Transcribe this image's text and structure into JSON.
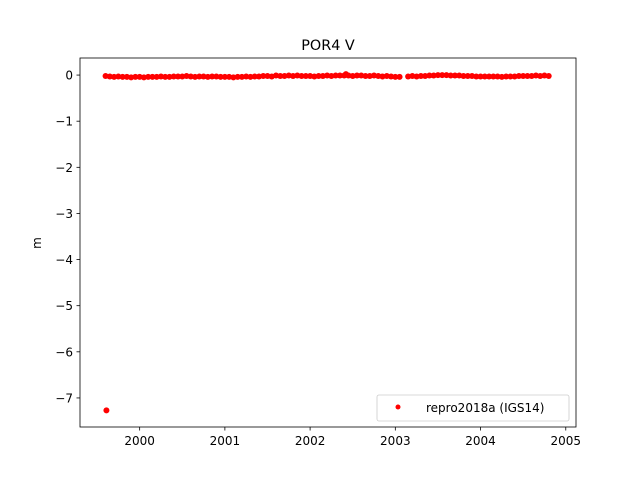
{
  "chart_data": {
    "type": "scatter",
    "title": "POR4 V",
    "xlabel": "",
    "ylabel": "m",
    "xlim": [
      1999.3,
      2005.12
    ],
    "ylim": [
      -7.63,
      0.37
    ],
    "xticks": [
      2000,
      2001,
      2002,
      2003,
      2004,
      2005
    ],
    "yticks": [
      0,
      -1,
      -2,
      -3,
      -4,
      -5,
      -6,
      -7
    ],
    "ytick_labels": [
      "0",
      "−1",
      "−2",
      "−3",
      "−4",
      "−5",
      "−6",
      "−7"
    ],
    "grid": false,
    "legend": "lower-right",
    "series": [
      {
        "name": "repro2018a (IGS14)",
        "color": "#ff0000",
        "marker": "dot",
        "x": [
          1999.6,
          1999.65,
          1999.7,
          1999.75,
          1999.8,
          1999.85,
          1999.9,
          1999.95,
          2000.0,
          2000.05,
          2000.1,
          2000.15,
          2000.2,
          2000.25,
          2000.3,
          2000.35,
          2000.4,
          2000.45,
          2000.5,
          2000.55,
          2000.6,
          2000.65,
          2000.7,
          2000.75,
          2000.8,
          2000.85,
          2000.9,
          2000.95,
          2001.0,
          2001.05,
          2001.1,
          2001.15,
          2001.2,
          2001.25,
          2001.3,
          2001.35,
          2001.4,
          2001.45,
          2001.5,
          2001.55,
          2001.6,
          2001.65,
          2001.7,
          2001.75,
          2001.8,
          2001.85,
          2001.9,
          2001.95,
          2002.0,
          2002.05,
          2002.1,
          2002.15,
          2002.2,
          2002.25,
          2002.3,
          2002.35,
          2002.4,
          2002.42,
          2002.45,
          2002.5,
          2002.55,
          2002.6,
          2002.65,
          2002.7,
          2002.75,
          2002.8,
          2002.85,
          2002.9,
          2002.95,
          2003.0,
          2003.05,
          2003.15,
          2003.2,
          2003.25,
          2003.3,
          2003.35,
          2003.4,
          2003.45,
          2003.5,
          2003.55,
          2003.6,
          2003.65,
          2003.7,
          2003.75,
          2003.8,
          2003.85,
          2003.9,
          2003.95,
          2004.0,
          2004.05,
          2004.1,
          2004.15,
          2004.2,
          2004.25,
          2004.3,
          2004.35,
          2004.4,
          2004.45,
          2004.5,
          2004.55,
          2004.6,
          2004.65,
          2004.7,
          2004.75,
          2004.8,
          1999.61
        ],
        "y": [
          -0.02,
          -0.03,
          -0.04,
          -0.03,
          -0.04,
          -0.04,
          -0.05,
          -0.04,
          -0.04,
          -0.05,
          -0.04,
          -0.04,
          -0.04,
          -0.03,
          -0.04,
          -0.04,
          -0.03,
          -0.03,
          -0.03,
          -0.02,
          -0.03,
          -0.04,
          -0.03,
          -0.03,
          -0.04,
          -0.03,
          -0.03,
          -0.04,
          -0.04,
          -0.04,
          -0.05,
          -0.04,
          -0.04,
          -0.03,
          -0.04,
          -0.03,
          -0.03,
          -0.02,
          -0.02,
          -0.03,
          -0.01,
          -0.02,
          -0.02,
          -0.01,
          -0.02,
          -0.01,
          -0.02,
          -0.02,
          -0.02,
          -0.03,
          -0.02,
          -0.02,
          -0.01,
          -0.02,
          -0.01,
          -0.01,
          -0.01,
          0.02,
          -0.01,
          -0.02,
          -0.01,
          -0.01,
          -0.02,
          -0.02,
          -0.01,
          -0.02,
          -0.03,
          -0.02,
          -0.03,
          -0.04,
          -0.04,
          -0.03,
          -0.02,
          -0.03,
          -0.02,
          -0.02,
          -0.01,
          -0.01,
          0.0,
          0.0,
          0.0,
          -0.01,
          -0.01,
          -0.01,
          -0.02,
          -0.02,
          -0.02,
          -0.03,
          -0.03,
          -0.03,
          -0.03,
          -0.03,
          -0.03,
          -0.04,
          -0.03,
          -0.03,
          -0.03,
          -0.02,
          -0.02,
          -0.02,
          -0.02,
          -0.01,
          -0.02,
          -0.01,
          -0.02,
          -7.27
        ]
      }
    ]
  }
}
